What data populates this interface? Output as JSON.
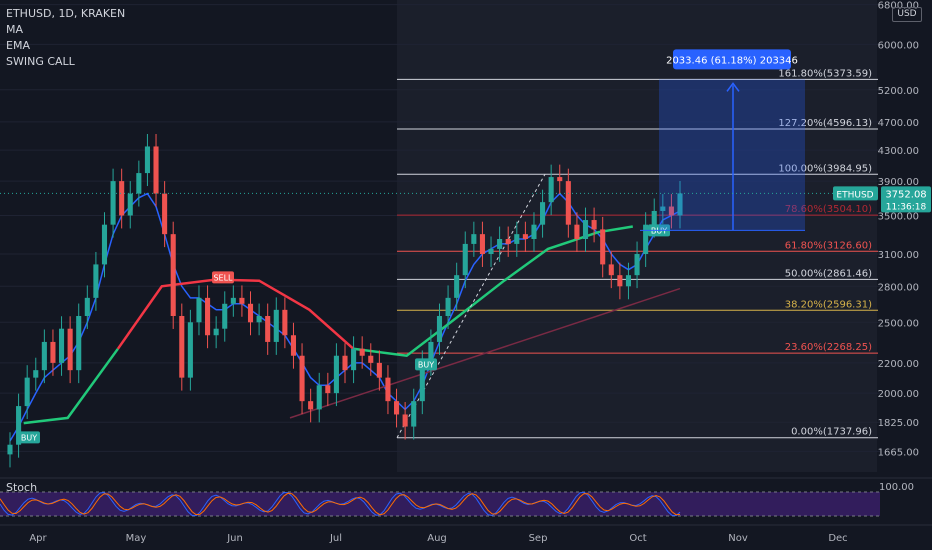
{
  "header": {
    "symbol": "ETHUSD, 1D, KRAKEN",
    "indicators": [
      "MA",
      "EMA",
      "SWING CALL"
    ]
  },
  "currency": "USD",
  "colors": {
    "background": "#131722",
    "up": "#26a69a",
    "down": "#ef5350",
    "ma_line": "#2962ff",
    "ema_green": "#21c97a",
    "ema_red": "#f23645",
    "fib_white": "#d1d4dc",
    "fib_red": "#b22833",
    "fib_yellow": "#d6b24a",
    "measure_blue": "#2962ff",
    "stoch_bg": "#3b1f6b"
  },
  "chart_data": {
    "type": "candlestick",
    "title": "ETHUSD, 1D, KRAKEN",
    "y_scale": "log",
    "y_ticks": [
      "6800.00",
      "6000.00",
      "5200.00",
      "4700.00",
      "4300.00",
      "3900.00",
      "3500.00",
      "3100.00",
      "2800.00",
      "2500.00",
      "2200.00",
      "2000.00",
      "1825.00",
      "1665.00"
    ],
    "x_ticks": [
      "Apr",
      "May",
      "Jun",
      "Jul",
      "Aug",
      "Sep",
      "Oct",
      "Nov",
      "Dec"
    ],
    "price_series": [
      [
        "Apr",
        1700
      ],
      [
        "",
        1920
      ],
      [
        "",
        2100
      ],
      [
        "",
        2150
      ],
      [
        "",
        2350
      ],
      [
        "",
        2200
      ],
      [
        "",
        2450
      ],
      [
        "",
        2150
      ],
      [
        "",
        2550
      ],
      [
        "",
        2700
      ],
      [
        "",
        3000
      ],
      [
        "",
        3400
      ],
      [
        "",
        3900
      ],
      [
        "",
        3500
      ],
      [
        "May",
        3750
      ],
      [
        "",
        4000
      ],
      [
        "",
        4350
      ],
      [
        "",
        3750
      ],
      [
        "",
        3300
      ],
      [
        "",
        2550
      ],
      [
        "",
        2100
      ],
      [
        "",
        2500
      ],
      [
        "",
        2700
      ],
      [
        "",
        2400
      ],
      [
        "",
        2450
      ],
      [
        "",
        2650
      ],
      [
        "",
        2700
      ],
      [
        "Jun",
        2650
      ],
      [
        "",
        2500
      ],
      [
        "",
        2550
      ],
      [
        "",
        2350
      ],
      [
        "",
        2600
      ],
      [
        "",
        2400
      ],
      [
        "",
        2250
      ],
      [
        "",
        1950
      ],
      [
        "",
        1900
      ],
      [
        "",
        2050
      ],
      [
        "",
        2000
      ],
      [
        "",
        2250
      ],
      [
        "",
        2150
      ],
      [
        "Jul",
        2300
      ],
      [
        "",
        2250
      ],
      [
        "",
        2200
      ],
      [
        "",
        2100
      ],
      [
        "",
        1950
      ],
      [
        "",
        1870
      ],
      [
        "",
        1800
      ],
      [
        "",
        1950
      ],
      [
        "",
        2200
      ],
      [
        "",
        2350
      ],
      [
        "",
        2550
      ],
      [
        "",
        2700
      ],
      [
        "Aug",
        2900
      ],
      [
        "",
        3200
      ],
      [
        "",
        3300
      ],
      [
        "",
        3100
      ],
      [
        "",
        3150
      ],
      [
        "",
        3250
      ],
      [
        "",
        3200
      ],
      [
        "",
        3300
      ],
      [
        "",
        3250
      ],
      [
        "",
        3400
      ],
      [
        "",
        3650
      ],
      [
        "",
        3950
      ],
      [
        "",
        3900
      ],
      [
        "Sep",
        3400
      ],
      [
        "",
        3250
      ],
      [
        "",
        3450
      ],
      [
        "",
        3350
      ],
      [
        "",
        3000
      ],
      [
        "",
        2900
      ],
      [
        "",
        2800
      ],
      [
        "",
        2900
      ],
      [
        "",
        3100
      ],
      [
        "",
        3400
      ],
      [
        "",
        3550
      ],
      [
        "Oct",
        3600
      ],
      [
        "",
        3500
      ],
      [
        "",
        3752
      ]
    ],
    "ma_series": [
      1720,
      1800,
      1900,
      2000,
      2100,
      2150,
      2200,
      2250,
      2350,
      2500,
      2700,
      3000,
      3300,
      3500,
      3600,
      3700,
      3750,
      3600,
      3300,
      3000,
      2800,
      2700,
      2700,
      2650,
      2600,
      2600,
      2650,
      2650,
      2600,
      2550,
      2500,
      2450,
      2400,
      2300,
      2200,
      2100,
      2050,
      2050,
      2100,
      2150,
      2200,
      2200,
      2150,
      2100,
      2000,
      1950,
      1900,
      1950,
      2050,
      2200,
      2350,
      2500,
      2650,
      2850,
      3000,
      3100,
      3150,
      3200,
      3200,
      3250,
      3250,
      3300,
      3450,
      3650,
      3750,
      3650,
      3500,
      3400,
      3350,
      3250,
      3100,
      3000,
      2950,
      3000,
      3150,
      3300,
      3450,
      3500,
      3550
    ],
    "ema_series": [
      [
        "2021-04-01",
        1820
      ],
      [
        "2021-04-15",
        1850
      ],
      [
        "2021-05-01",
        2300
      ],
      [
        "2021-05-15",
        2800
      ],
      [
        "2021-06-01",
        2860
      ],
      [
        "2021-06-15",
        2850
      ],
      [
        "2021-07-01",
        2600
      ],
      [
        "2021-07-15",
        2300
      ],
      [
        "2021-08-01",
        2250
      ],
      [
        "2021-08-15",
        2500
      ],
      [
        "2021-09-01",
        2850
      ],
      [
        "2021-09-15",
        3150
      ],
      [
        "2021-10-01",
        3320
      ],
      [
        "2021-10-12",
        3380
      ]
    ],
    "badges": [
      {
        "label": "BUY",
        "color": "#26a69a"
      },
      {
        "label": "SELL",
        "color": "#ef5350"
      },
      {
        "label": "BUY",
        "color": "#26a69a"
      },
      {
        "label": "BUY",
        "color": "#26a69a"
      }
    ],
    "fib_levels": [
      {
        "label": "161.80%(5373.59)",
        "price": 5373.59,
        "color": "#d1d4dc"
      },
      {
        "label": "127.20%(4596.13)",
        "price": 4596.13,
        "color": "#d1d4dc"
      },
      {
        "label": "100.00%(3984.95)",
        "price": 3984.95,
        "color": "#d1d4dc"
      },
      {
        "label": "78.60%(3504.10)",
        "price": 3504.1,
        "color": "#b22833"
      },
      {
        "label": "61.80%(3126.60)",
        "price": 3126.6,
        "color": "#ef5350"
      },
      {
        "label": "50.00%(2861.46)",
        "price": 2861.46,
        "color": "#d1d4dc"
      },
      {
        "label": "38.20%(2596.31)",
        "price": 2596.31,
        "color": "#d6b24a"
      },
      {
        "label": "23.60%(2268.25)",
        "price": 2268.25,
        "color": "#ef5350"
      },
      {
        "label": "0.00%(1737.96)",
        "price": 1737.96,
        "color": "#d1d4dc"
      }
    ],
    "measure_label": "2033.46 (61.18%) 203346",
    "last_price": {
      "symbol": "ETHUSD",
      "price": "3752.08",
      "countdown": "11:36:18"
    },
    "stoch": {
      "label": "Stoch",
      "tick": "100.00"
    }
  }
}
